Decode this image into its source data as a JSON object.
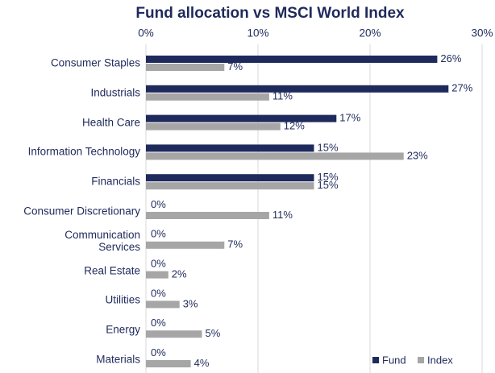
{
  "chart_data": {
    "type": "hbar",
    "title": "Fund allocation vs MSCI World Index",
    "categories": [
      "Consumer Staples",
      "Industrials",
      "Health Care",
      "Information Technology",
      "Financials",
      "Consumer Discretionary",
      "Communication\nServices",
      "Real Estate",
      "Utilities",
      "Energy",
      "Materials"
    ],
    "series": [
      {
        "name": "Fund",
        "color": "#1f2a5c",
        "values": [
          26,
          27,
          17,
          15,
          15,
          0,
          0,
          0,
          0,
          0,
          0
        ],
        "value_labels": [
          "26%",
          "27%",
          "17%",
          "15%",
          "15%",
          "0%",
          "0%",
          "0%",
          "0%",
          "0%",
          "0%"
        ]
      },
      {
        "name": "Index",
        "color": "#a6a6a6",
        "values": [
          7,
          11,
          12,
          23,
          15,
          11,
          7,
          2,
          3,
          5,
          4
        ],
        "value_labels": [
          "7%",
          "11%",
          "12%",
          "23%",
          "15%",
          "11%",
          "7%",
          "2%",
          "3%",
          "5%",
          "4%"
        ]
      }
    ],
    "xlim": [
      0,
      30
    ],
    "xticks": [
      {
        "value": 0,
        "label": "0%"
      },
      {
        "value": 10,
        "label": "10%"
      },
      {
        "value": 20,
        "label": "20%"
      },
      {
        "value": 30,
        "label": "30%"
      }
    ],
    "grid": true,
    "legend": "bottom-right"
  }
}
